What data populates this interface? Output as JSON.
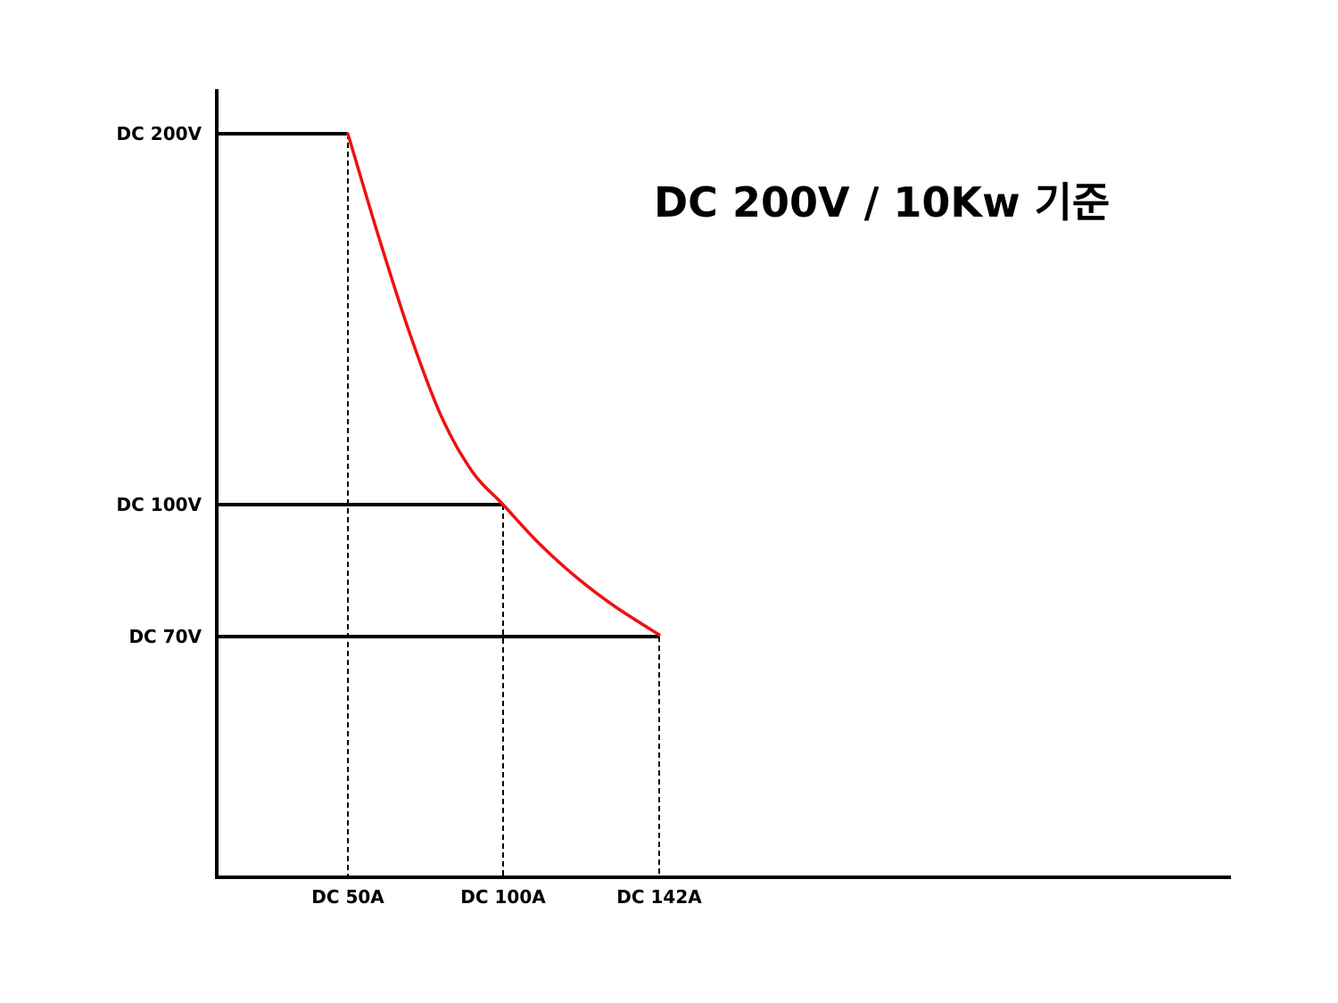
{
  "chart_data": {
    "type": "line",
    "title": "DC 200V / 10Kw 기준",
    "xlabel": "",
    "ylabel": "",
    "x_unit": "A",
    "y_unit": "V",
    "grid": false,
    "y_ticks": [
      {
        "value": 200,
        "label": "DC 200V"
      },
      {
        "value": 100,
        "label": "DC 100V"
      },
      {
        "value": 70,
        "label": "DC 70V"
      }
    ],
    "x_ticks": [
      {
        "value": 50,
        "label": "DC 50A"
      },
      {
        "value": 100,
        "label": "DC 100A"
      },
      {
        "value": 142,
        "label": "DC 142A"
      }
    ],
    "reference_lines": [
      {
        "y": 200,
        "x_end": 50
      },
      {
        "y": 100,
        "x_end": 100
      },
      {
        "y": 70,
        "x_end": 142
      }
    ],
    "series": [
      {
        "x": [
          50,
          60,
          70,
          80,
          90,
          100,
          110,
          120,
          130,
          142
        ],
        "y": [
          200,
          172,
          146,
          124,
          109,
          100,
          90.9,
          83.3,
          76.9,
          70.4
        ]
      }
    ],
    "colors": {
      "axis": "#000000",
      "curve": "#ee1111",
      "guide": "#000000"
    }
  }
}
